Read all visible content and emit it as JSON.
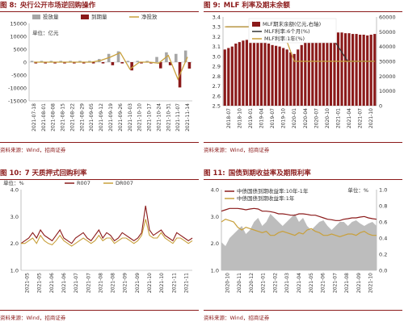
{
  "panels": [
    {
      "num": "图 8:",
      "title": "央行公开市场逆回购操作",
      "source": "资料来源：Wind，招商证券"
    },
    {
      "num": "图 9:",
      "title": "MLF 利率及期末余额",
      "source": "资料来源：Wind，招商证券"
    },
    {
      "num": "图 10:",
      "title": "7 天质押式回购利率",
      "source": "资料来源：Wind，招商证券"
    },
    {
      "num": "图 11:",
      "title": "国债到期收益率及期限利率",
      "source": "资料来源：Wind，招商证券"
    }
  ],
  "chart_data": [
    {
      "type": "bar",
      "legend": [
        "投放量",
        "到期量",
        "净投放"
      ],
      "unit_label": "单位：亿元",
      "ylim": [
        -15000,
        15000
      ],
      "yticks": [
        "15000",
        "10000",
        "5000",
        "0",
        "-5000",
        "-10000",
        "-15000"
      ],
      "categories": [
        "2021-07-18",
        "2021-08-01",
        "2021-08-08",
        "2021-08-15",
        "2021-08-22",
        "2021-08-29",
        "2021-09-05",
        "2021-09-12",
        "2021-09-19",
        "2021-09-26",
        "2021-10-03",
        "2021-10-10",
        "2021-10-17",
        "2021-10-24",
        "2021-10-31",
        "2021-11-07",
        "2021-11-14"
      ],
      "x_tick_labels": [
        "2021-07-18",
        "2021-08-01",
        "2021-08-08",
        "2021-08-15",
        "2021-08-22",
        "2021-08-29",
        "2021-09-05",
        "2021-09-12",
        "2021-09-19",
        "2021-09-26",
        "2021-10-03",
        "2021-10-10",
        "2021-10-17",
        "2021-10-24",
        "2021-10-31",
        "2021-11-07",
        "2021-11-14"
      ],
      "series": [
        {
          "name": "投放量",
          "values": [
            500,
            500,
            500,
            500,
            500,
            500,
            500,
            1200,
            3200,
            4200,
            500,
            500,
            500,
            2000,
            3800,
            3200,
            4500
          ]
        },
        {
          "name": "到期量",
          "values": [
            -500,
            -500,
            -500,
            -500,
            -500,
            -500,
            -500,
            -500,
            -1200,
            -500,
            -3200,
            -500,
            -500,
            -2400,
            -1200,
            -9800,
            -2500
          ]
        },
        {
          "name": "净投放",
          "values": [
            0,
            0,
            0,
            0,
            0,
            0,
            0,
            700,
            2000,
            3700,
            -2700,
            0,
            0,
            -400,
            2600,
            -6600,
            2000
          ]
        }
      ]
    },
    {
      "type": "bar+line",
      "legend": [
        "MLF期末余额(亿元,右轴)",
        "MLF利率:6个月(%)",
        "MLF利率:1年(%)"
      ],
      "ylim": [
        2.5,
        3.4
      ],
      "yticks": [
        "3.4",
        "3.3",
        "3.2",
        "3.1",
        "3.0",
        "2.9",
        "2.8",
        "2.7",
        "2.6",
        "2.5"
      ],
      "y2lim": [
        0,
        60000
      ],
      "y2ticks": [
        "60000",
        "50000",
        "40000",
        "30000",
        "20000",
        "10000",
        "0"
      ],
      "x_tick_labels": [
        "2018-07",
        "2018-10",
        "2019-01",
        "2019-04",
        "2019-07",
        "2019-10",
        "2020-01",
        "2020-04",
        "2020-07",
        "2020-10",
        "2021-01",
        "2021-04",
        "2021-07",
        "2021-10"
      ],
      "balance": [
        38000,
        39000,
        40000,
        42000,
        43000,
        44000,
        44500,
        45000,
        45000,
        45500,
        44000,
        43000,
        42000,
        41000,
        40500,
        40000,
        39000,
        38000,
        36000,
        35000,
        38000,
        41000,
        44000,
        47000,
        50000,
        51000,
        51500,
        51500,
        51000,
        50500,
        50000,
        49500,
        49500,
        49000,
        49000,
        48500,
        48500,
        48000,
        48000,
        47500,
        48000,
        48500
      ],
      "series": [
        {
          "name": "MLF利率:6个月(%)",
          "values": [
            3.3,
            3.3,
            3.3,
            3.3,
            3.3,
            3.3,
            3.3,
            3.3,
            3.3,
            3.3,
            3.3,
            3.3,
            3.3,
            3.3,
            3.3,
            3.3,
            3.25,
            3.15,
            3.05,
            2.95,
            2.95,
            2.95,
            2.95,
            2.95
          ]
        },
        {
          "name": "MLF利率:1年(%)",
          "values": [
            3.3,
            3.3,
            3.3,
            3.3,
            3.3,
            3.3,
            3.3,
            3.3,
            3.3,
            3.3,
            3.3,
            3.3,
            3.3,
            3.3,
            3.3,
            3.3,
            3.25,
            3.15,
            3.05,
            2.95,
            2.95,
            2.95,
            2.95,
            2.95,
            2.95,
            2.95,
            2.95,
            2.95,
            2.95,
            2.95,
            2.95,
            2.95,
            2.95,
            2.95,
            2.95,
            2.95,
            2.95,
            2.95,
            2.95,
            2.95,
            2.95,
            2.95
          ]
        }
      ]
    },
    {
      "type": "line",
      "legend": [
        "R007",
        "DR007"
      ],
      "unit_label": "单位：%",
      "ylim": [
        1.0,
        4.0
      ],
      "yticks": [
        "4.0",
        "3.0",
        "2.0",
        "1.0"
      ],
      "x_tick_labels": [
        "2021-05",
        "2021-05",
        "2021-06",
        "2021-06",
        "2021-07",
        "2021-07",
        "2021-08",
        "2021-08",
        "2021-09",
        "2021-09",
        "2021-10",
        "2021-10",
        "2021-11",
        "2021-11"
      ],
      "series": [
        {
          "name": "R007",
          "values": [
            2.0,
            2.1,
            2.2,
            2.4,
            2.2,
            2.5,
            2.3,
            2.2,
            2.1,
            2.3,
            2.5,
            2.2,
            2.1,
            2.0,
            2.2,
            2.3,
            2.4,
            2.2,
            2.1,
            2.3,
            2.5,
            2.2,
            2.4,
            2.3,
            2.1,
            2.2,
            2.4,
            2.3,
            2.2,
            2.1,
            2.2,
            2.4,
            3.4,
            2.5,
            2.3,
            2.4,
            2.5,
            2.3,
            2.2,
            2.1,
            2.4,
            2.3,
            2.2,
            2.1,
            2.2
          ]
        },
        {
          "name": "DR007",
          "values": [
            2.0,
            2.0,
            2.1,
            2.2,
            2.0,
            2.3,
            2.1,
            2.0,
            1.95,
            2.1,
            2.3,
            2.1,
            2.0,
            1.9,
            2.0,
            2.1,
            2.2,
            2.1,
            2.0,
            2.1,
            2.3,
            2.1,
            2.2,
            2.2,
            2.0,
            2.1,
            2.2,
            2.2,
            2.1,
            2.0,
            2.1,
            2.3,
            2.9,
            2.3,
            2.2,
            2.2,
            2.4,
            2.2,
            2.1,
            2.0,
            2.2,
            2.2,
            2.1,
            2.0,
            2.1
          ]
        }
      ]
    },
    {
      "type": "line+area",
      "legend": [
        "中债国债到期收益率:10年-1年",
        "中债国债到期收益率:1年"
      ],
      "unit_label": "单位：%",
      "ylim": [
        1.0,
        4.0
      ],
      "yticks": [
        "4.0",
        "3.0",
        "2.0",
        "1.0"
      ],
      "y2lim": [
        0,
        1.0
      ],
      "y2ticks": [
        "1.0",
        "0.8",
        "0.6",
        "0.4",
        "0.2",
        "0.0"
      ],
      "x_tick_labels": [
        "2020-10",
        "2020-11",
        "2020-12",
        "2021-01",
        "2021-02",
        "2021-03",
        "2021-04",
        "2021-05",
        "2021-06",
        "2021-07",
        "2021-08",
        "2021-09",
        "2021-10"
      ],
      "spread": [
        0.35,
        0.3,
        0.4,
        0.45,
        0.5,
        0.55,
        0.45,
        0.5,
        0.6,
        0.65,
        0.55,
        0.6,
        0.7,
        0.65,
        0.6,
        0.55,
        0.6,
        0.65,
        0.7,
        0.6,
        0.65,
        0.55,
        0.5,
        0.55,
        0.6,
        0.62,
        0.55,
        0.5,
        0.55,
        0.6,
        0.6,
        0.55,
        0.6,
        0.62,
        0.58,
        0.55,
        0.58,
        0.6,
        0.55
      ],
      "series": [
        {
          "name": "中债国债到期收益率:10年-1年",
          "values": [
            3.2,
            3.25,
            3.3,
            3.3,
            3.3,
            3.28,
            3.25,
            3.28,
            3.3,
            3.28,
            3.2,
            3.2,
            3.18,
            3.15,
            3.1,
            3.1,
            3.08,
            3.05,
            3.05,
            3.1,
            3.1,
            3.08,
            3.05,
            3.05,
            3.0,
            2.95,
            2.9,
            2.88,
            2.85,
            2.85,
            2.9,
            2.92,
            2.95,
            2.95,
            2.98,
            3.0,
            2.95,
            2.92,
            2.9
          ]
        },
        {
          "name": "中债国债到期收益率:1年",
          "values": [
            2.8,
            2.9,
            2.85,
            2.8,
            2.6,
            2.5,
            2.6,
            2.55,
            2.5,
            2.45,
            2.4,
            2.45,
            2.3,
            2.3,
            2.4,
            2.45,
            2.4,
            2.35,
            2.3,
            2.4,
            2.35,
            2.5,
            2.55,
            2.45,
            2.4,
            2.3,
            2.3,
            2.35,
            2.3,
            2.25,
            2.3,
            2.35,
            2.35,
            2.3,
            2.4,
            2.45,
            2.35,
            2.3,
            2.3
          ]
        }
      ]
    }
  ],
  "colors": {
    "red": "#8b1a1a",
    "gold": "#c8a03c",
    "grey": "#a6a6a6",
    "dark": "#333333"
  }
}
